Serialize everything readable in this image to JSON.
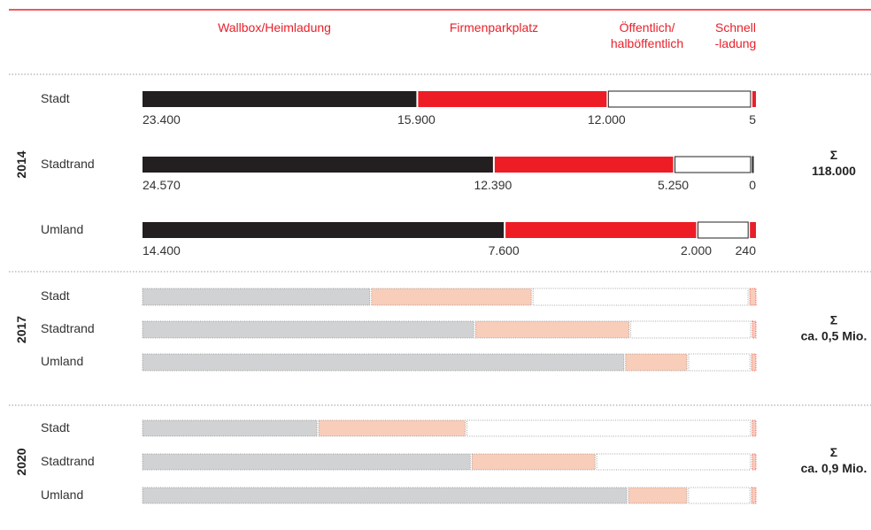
{
  "chart_data": {
    "type": "bar",
    "orientation": "horizontal",
    "stacked": true,
    "categories": [
      "Wallbox/Heimladung",
      "Firmenparkplatz",
      "Öffentlich/ halböffentlich",
      "Schnell -ladung"
    ],
    "header_lines": [
      [
        "Wallbox/Heimladung"
      ],
      [
        "Firmenparkplatz"
      ],
      [
        "Öffentlich/",
        "halböffentlich"
      ],
      [
        "Schnell",
        "-ladung"
      ]
    ],
    "colors": {
      "accent": "#e8202a",
      "solid": [
        "#231f20",
        "#ee1c25",
        "#ffffff",
        "#e8202a"
      ],
      "light": [
        "#d1d2d3",
        "#f8cdb9",
        "#ffffff",
        "#f8cdb9"
      ]
    },
    "groups": [
      {
        "year": "2014",
        "sum_symbol": "Σ",
        "sum_label": "118.000",
        "style": "solid",
        "rows": [
          {
            "label": "Stadt",
            "values": [
              23400,
              15900,
              12000,
              5
            ],
            "value_labels": [
              "23.400",
              "15.900",
              "12.000",
              "5"
            ]
          },
          {
            "label": "Stadtrand",
            "values": [
              24570,
              12390,
              5250,
              0
            ],
            "value_labels": [
              "24.570",
              "12.390",
              "5.250",
              "0"
            ]
          },
          {
            "label": "Umland",
            "values": [
              14400,
              7600,
              2000,
              240
            ],
            "value_labels": [
              "14.400",
              "7.600",
              "2.000",
              "240"
            ]
          }
        ]
      },
      {
        "year": "2017",
        "sum_symbol": "Σ",
        "sum_label": "ca. 0,5 Mio.",
        "style": "light",
        "rows": [
          {
            "label": "Stadt",
            "values": [
              37,
              26,
              35,
              1
            ]
          },
          {
            "label": "Stadtrand",
            "values": [
              54,
              25,
              19.5,
              0.5
            ]
          },
          {
            "label": "Umland",
            "values": [
              78.6,
              10,
              10,
              0.7
            ]
          }
        ]
      },
      {
        "year": "2020",
        "sum_symbol": "Σ",
        "sum_label": "ca. 0,9 Mio.",
        "style": "light",
        "rows": [
          {
            "label": "Stadt",
            "values": [
              28.6,
              24,
              46.5,
              0.6
            ]
          },
          {
            "label": "Stadtrand",
            "values": [
              53.3,
              20,
              25,
              0.6
            ]
          },
          {
            "label": "Umland",
            "values": [
              79,
              9.5,
              10,
              0.7
            ]
          }
        ]
      }
    ]
  }
}
